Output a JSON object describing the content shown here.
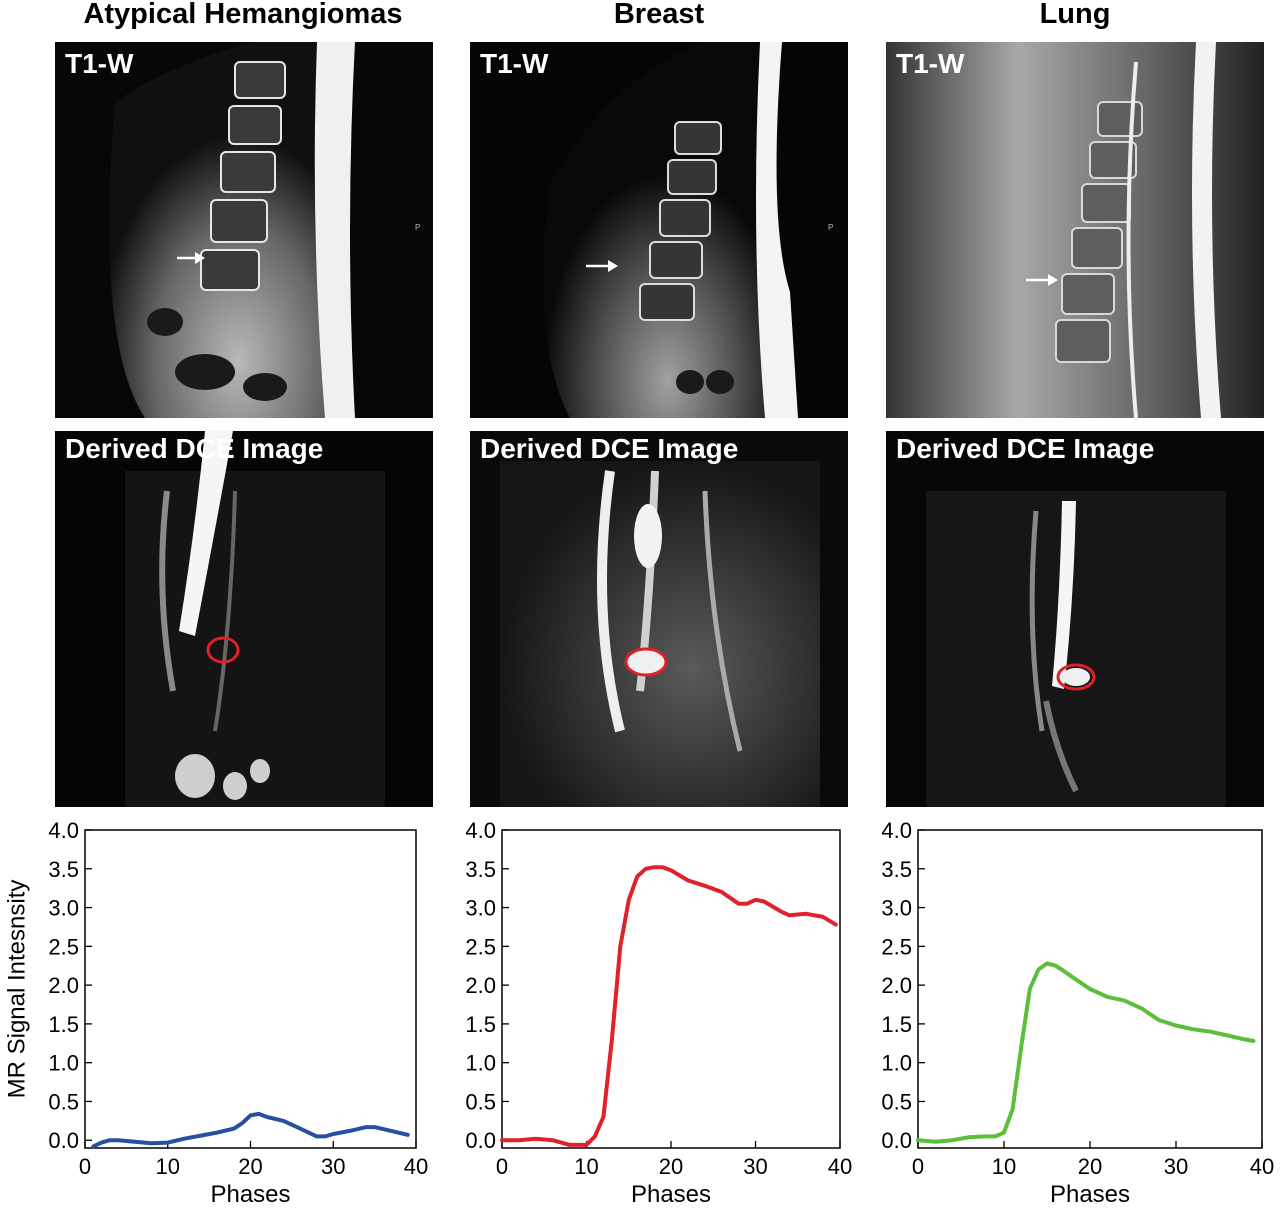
{
  "columns": [
    {
      "title": "Atypical Hemangiomas",
      "t1_label": "T1-W",
      "dce_label": "Derived DCE Image",
      "scan_marker": "P"
    },
    {
      "title": "Breast",
      "t1_label": "T1-W",
      "dce_label": "Derived DCE Image",
      "scan_marker": "P"
    },
    {
      "title": "Lung",
      "t1_label": "T1-W",
      "dce_label": "Derived DCE Image",
      "scan_marker": ""
    }
  ],
  "colors": {
    "hemangioma": "#2b4fa0",
    "breast": "#e0202a",
    "lung": "#5cbf3a",
    "roi_circle": "#e0202a",
    "arrow": "#ffffff"
  },
  "chart_data": [
    {
      "type": "line",
      "xlabel": "Phases",
      "ylabel": "MR Signal Intesnsity",
      "xlim": [
        0,
        40
      ],
      "ylim": [
        -0.1,
        4.0
      ],
      "xticks": [
        "0",
        "10",
        "20",
        "30",
        "40"
      ],
      "yticks": [
        "0.0",
        "0.5",
        "1.0",
        "1.5",
        "2.0",
        "2.5",
        "3.0",
        "3.5",
        "4.0"
      ],
      "grid": false,
      "series": [
        {
          "color": "#2b4fa0",
          "x": [
            1,
            2,
            3,
            4,
            6,
            8,
            10,
            12,
            14,
            16,
            18,
            19,
            20,
            21,
            22,
            24,
            26,
            28,
            29,
            30,
            32,
            34,
            35,
            37,
            39
          ],
          "y": [
            -0.08,
            -0.03,
            0.0,
            0.0,
            -0.02,
            -0.04,
            -0.03,
            0.02,
            0.06,
            0.1,
            0.15,
            0.22,
            0.32,
            0.34,
            0.3,
            0.25,
            0.15,
            0.05,
            0.05,
            0.08,
            0.12,
            0.17,
            0.17,
            0.12,
            0.07
          ]
        }
      ]
    },
    {
      "type": "line",
      "xlabel": "Phases",
      "ylabel": "",
      "xlim": [
        0,
        40
      ],
      "ylim": [
        -0.1,
        4.0
      ],
      "xticks": [
        "0",
        "10",
        "20",
        "30",
        "40"
      ],
      "yticks": [
        "0.0",
        "0.5",
        "1.0",
        "1.5",
        "2.0",
        "2.5",
        "3.0",
        "3.5",
        "4.0"
      ],
      "grid": false,
      "series": [
        {
          "color": "#e0202a",
          "x": [
            0,
            2,
            4,
            6,
            8,
            10,
            11,
            12,
            13,
            14,
            15,
            16,
            17,
            18,
            19,
            20,
            22,
            24,
            26,
            28,
            29,
            30,
            31,
            33,
            34,
            36,
            38,
            39.5
          ],
          "y": [
            0.0,
            0.0,
            0.02,
            0.0,
            -0.06,
            -0.06,
            0.05,
            0.3,
            1.3,
            2.5,
            3.1,
            3.4,
            3.5,
            3.52,
            3.52,
            3.48,
            3.35,
            3.28,
            3.2,
            3.05,
            3.05,
            3.1,
            3.08,
            2.95,
            2.9,
            2.92,
            2.88,
            2.78
          ]
        }
      ]
    },
    {
      "type": "line",
      "xlabel": "Phases",
      "ylabel": "",
      "xlim": [
        0,
        40
      ],
      "ylim": [
        -0.1,
        4.0
      ],
      "xticks": [
        "0",
        "10",
        "20",
        "30",
        "40"
      ],
      "yticks": [
        "0.0",
        "0.5",
        "1.0",
        "1.5",
        "2.0",
        "2.5",
        "3.0",
        "3.5",
        "4.0"
      ],
      "grid": false,
      "series": [
        {
          "color": "#5cbf3a",
          "x": [
            0,
            2,
            4,
            6,
            8,
            9,
            10,
            11,
            12,
            13,
            14,
            15,
            16,
            17,
            18,
            20,
            22,
            24,
            26,
            28,
            30,
            32,
            34,
            36,
            38,
            39
          ],
          "y": [
            0.0,
            -0.02,
            0.0,
            0.04,
            0.05,
            0.05,
            0.1,
            0.4,
            1.2,
            1.95,
            2.2,
            2.28,
            2.25,
            2.18,
            2.1,
            1.95,
            1.85,
            1.8,
            1.7,
            1.55,
            1.48,
            1.43,
            1.4,
            1.35,
            1.3,
            1.28
          ]
        }
      ]
    }
  ]
}
